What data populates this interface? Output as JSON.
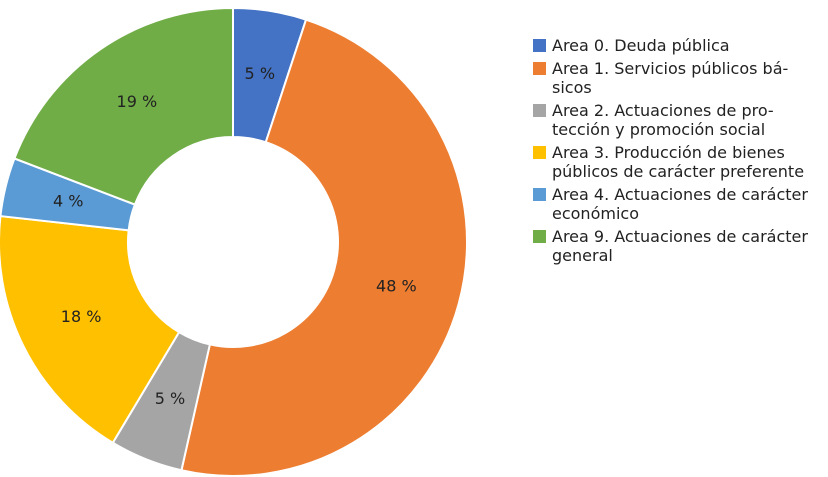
{
  "chart_data": {
    "type": "donut",
    "categories": [
      "Area 0. Deuda pública",
      "Area 1. Servicios públicos bá-\nsicos",
      "Area 2. Actuaciones de pro-\ntección y promoción social",
      "Area 3. Producción de bienes\npúblicos de carácter preferente",
      "Area 4. Actuaciones de carácter\neconómico",
      "Area 9. Actuaciones de carácter\ngeneral"
    ],
    "values": [
      5,
      48,
      5,
      18,
      4,
      19
    ],
    "value_labels": [
      "5 %",
      "48 %",
      "5 %",
      "18 %",
      "4 %",
      "19 %"
    ],
    "colors": [
      "#4472c4",
      "#ed7d31",
      "#a5a5a5",
      "#ffc000",
      "#5b9bd5",
      "#70ad47"
    ],
    "legend": "right"
  }
}
